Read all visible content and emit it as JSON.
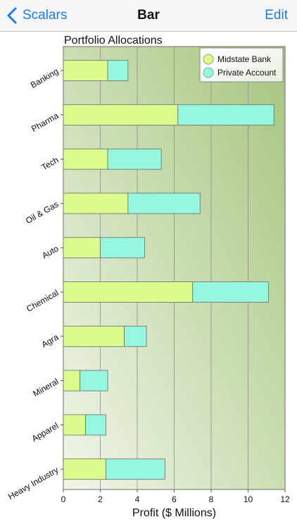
{
  "nav": {
    "back_label": "Scalars",
    "title": "Bar",
    "edit_label": "Edit"
  },
  "colors": {
    "accent": "#1a7cf5",
    "series_midstate": "#ddfc8e",
    "series_private": "#96f7df",
    "plot_bg_dark": "#a6c57e",
    "plot_bg_light": "#f1f6e9"
  },
  "chart_data": {
    "type": "bar",
    "orientation": "horizontal",
    "stacked": true,
    "title": "Portfolio Allocations",
    "xlabel": "Profit ($ Millions)",
    "ylabel": "",
    "xlim": [
      0,
      12
    ],
    "xticks": [
      0,
      2,
      4,
      6,
      8,
      10,
      12
    ],
    "grid": true,
    "legend_position": "top-right",
    "categories": [
      "Banking",
      "Pharma",
      "Tech",
      "Oil & Gas",
      "Auto",
      "Chemical",
      "Agra",
      "Mineral",
      "Apparel",
      "Heavy Industry"
    ],
    "series": [
      {
        "name": "Midstate Bank",
        "color": "#ddfc8e",
        "values": [
          2.4,
          6.2,
          2.4,
          3.5,
          2.0,
          7.0,
          3.3,
          0.9,
          1.2,
          2.3
        ]
      },
      {
        "name": "Private Account",
        "color": "#96f7df",
        "values": [
          1.1,
          5.2,
          2.9,
          3.9,
          2.4,
          4.1,
          1.2,
          1.5,
          1.1,
          3.2
        ]
      }
    ]
  }
}
